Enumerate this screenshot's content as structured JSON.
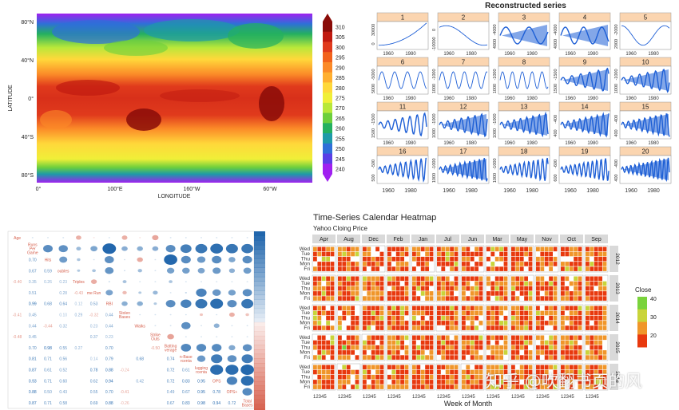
{
  "chart_data": [
    {
      "type": "heatmap",
      "title": "",
      "xlabel": "LONGITUDE",
      "ylabel": "LATITUDE",
      "x_ticks": [
        "0°",
        "100°E",
        "160°W",
        "60°W"
      ],
      "y_ticks": [
        "80°N",
        "40°N",
        "0°",
        "40°S",
        "80°S"
      ],
      "colorbar_ticks": [
        310,
        305,
        300,
        295,
        290,
        285,
        280,
        275,
        270,
        265,
        260,
        255,
        250,
        245,
        240
      ],
      "colorbar_colors": [
        "#8a0c08",
        "#c01a10",
        "#e03a1c",
        "#f2621c",
        "#fb8a28",
        "#ffaf30",
        "#ffd83a",
        "#f0ef38",
        "#b8e83a",
        "#6ccf3c",
        "#24b060",
        "#1e9aa8",
        "#2f6fd8",
        "#5a3ee6",
        "#a020f0"
      ]
    },
    {
      "type": "line",
      "title": "Reconstructed series",
      "panels": [
        {
          "name": "1",
          "y_ticks": [
            "30000",
            "0"
          ]
        },
        {
          "name": "2",
          "y_ticks": [
            "0",
            "-10000"
          ]
        },
        {
          "name": "3",
          "y_ticks": [
            "-4000",
            "4000"
          ]
        },
        {
          "name": "4",
          "y_ticks": [
            "-4000",
            "4000"
          ]
        },
        {
          "name": "5",
          "y_ticks": [
            "-2000",
            "2000"
          ]
        },
        {
          "name": "6",
          "y_ticks": [
            "-5000",
            "5000"
          ]
        },
        {
          "name": "7",
          "y_ticks": [
            "-1000",
            "1000"
          ]
        },
        {
          "name": "8",
          "y_ticks": [
            "-1000",
            "1000"
          ]
        },
        {
          "name": "9",
          "y_ticks": [
            "-1500",
            "1500"
          ]
        },
        {
          "name": "10",
          "y_ticks": [
            "-1000",
            "1000"
          ]
        },
        {
          "name": "11",
          "y_ticks": [
            "-1500",
            "1500"
          ]
        },
        {
          "name": "12",
          "y_ticks": [
            "-1000",
            "1000"
          ]
        },
        {
          "name": "13",
          "y_ticks": [
            "-1000",
            "1000"
          ]
        },
        {
          "name": "14",
          "y_ticks": [
            "-400",
            "400"
          ]
        },
        {
          "name": "15",
          "y_ticks": [
            "-400",
            "400"
          ]
        },
        {
          "name": "16",
          "y_ticks": [
            "-500",
            "500"
          ]
        },
        {
          "name": "17",
          "y_ticks": [
            "-1000",
            "1000"
          ]
        },
        {
          "name": "18",
          "y_ticks": [
            "-1000",
            "1000"
          ]
        },
        {
          "name": "19",
          "y_ticks": [
            "-600",
            "600"
          ]
        },
        {
          "name": "20",
          "y_ticks": [
            "-400",
            "400"
          ]
        }
      ],
      "x_ticks": [
        "1960",
        "1980"
      ]
    },
    {
      "type": "heatmap",
      "title": "",
      "variables": [
        "Age",
        "Runs Per Game",
        "Hits",
        "Doubles",
        "Triples",
        "Home Runs",
        "RBI",
        "Stolen Bases",
        "Walks",
        "Strike Outs",
        "Batting Average",
        "On-Base Percentage",
        "Slugging Percentage",
        "OPS",
        "OPS+",
        "Total Bases"
      ],
      "diag_labels": [
        "Age",
        "Runs\nPer\nGame",
        "Hits",
        "oubles",
        "Triples",
        "me Run",
        "RBI",
        "Stolen\nBases",
        "Walks",
        "Strike\nOuts",
        "Batting\nverage",
        "n-Base\nrcenta",
        "lugging\nrcenta",
        "OPS",
        "OPS+",
        "Total\nBases"
      ],
      "values": [
        [
          1,
          0.05,
          0.05,
          0.05,
          -0.4,
          -0.05,
          0.05,
          -0.41,
          -0.05,
          -0.48,
          0.05,
          0.05,
          0.05,
          0.05,
          0.05,
          0.05
        ],
        [
          0.05,
          1,
          0.7,
          0.67,
          0.35,
          0.51,
          0.99,
          0.45,
          0.44,
          0.45,
          0.7,
          0.81,
          0.87,
          0.93,
          0.88,
          0.87
        ],
        [
          0.05,
          0.7,
          1,
          0.59,
          0.26,
          0.05,
          0.68,
          0.05,
          -0.44,
          0.05,
          0.98,
          0.71,
          0.61,
          0.71,
          0.5,
          0.71
        ],
        [
          0.05,
          0.67,
          0.59,
          1,
          0.23,
          0.28,
          0.64,
          0.1,
          0.32,
          0.05,
          0.55,
          0.56,
          0.52,
          0.6,
          0.43,
          0.58
        ],
        [
          -0.4,
          0.35,
          0.26,
          0.23,
          1,
          -0.43,
          0.12,
          0.29,
          0.05,
          0.05,
          0.27,
          0.05,
          0.05,
          0.05,
          0.05,
          0.05
        ],
        [
          -0.05,
          0.51,
          0.05,
          0.28,
          -0.43,
          1,
          0.53,
          -0.32,
          0.23,
          0.37,
          0.05,
          0.14,
          0.78,
          0.62,
          0.55,
          0.69
        ],
        [
          0.05,
          0.99,
          0.68,
          0.64,
          0.12,
          0.53,
          1,
          0.44,
          0.44,
          0.23,
          0.7,
          0.79,
          0.88,
          0.94,
          0.7,
          0.88
        ],
        [
          -0.41,
          0.45,
          0.05,
          0.1,
          0.29,
          -0.32,
          0.44,
          1,
          0.05,
          0.05,
          0.05,
          0.05,
          -0.24,
          0.05,
          -0.41,
          -0.26
        ],
        [
          -0.05,
          0.44,
          -0.44,
          0.32,
          0.05,
          0.23,
          0.44,
          0.05,
          1,
          0.05,
          0.05,
          0.68,
          0.05,
          0.42,
          0.05,
          0.05
        ],
        [
          -0.48,
          0.45,
          0.05,
          0.05,
          0.05,
          0.37,
          0.23,
          0.05,
          0.05,
          1,
          -0.5,
          0.05,
          0.05,
          0.05,
          0.05,
          0.05
        ],
        [
          0.05,
          0.7,
          0.98,
          0.55,
          0.27,
          0.05,
          0.7,
          0.05,
          0.05,
          -0.5,
          1,
          0.74,
          0.72,
          0.72,
          0.49,
          0.67
        ],
        [
          0.05,
          0.81,
          0.71,
          0.56,
          0.05,
          0.14,
          0.79,
          0.05,
          0.68,
          0.05,
          0.74,
          1,
          0.61,
          0.83,
          0.67,
          0.83
        ],
        [
          0.05,
          0.87,
          0.61,
          0.52,
          0.05,
          0.78,
          0.88,
          -0.24,
          0.05,
          0.05,
          0.72,
          0.61,
          1,
          0.95,
          0.95,
          0.98
        ],
        [
          0.05,
          0.93,
          0.71,
          0.6,
          0.05,
          0.62,
          0.94,
          0.05,
          0.42,
          0.05,
          0.72,
          0.83,
          0.95,
          1,
          0.78,
          0.94
        ],
        [
          0.05,
          0.88,
          0.5,
          0.43,
          0.05,
          0.55,
          0.7,
          -0.41,
          0.05,
          0.05,
          0.49,
          0.67,
          0.95,
          0.78,
          1,
          0.72
        ],
        [
          0.05,
          0.87,
          0.71,
          0.58,
          0.05,
          0.69,
          0.88,
          -0.26,
          0.05,
          0.05,
          0.67,
          0.83,
          0.98,
          0.94,
          0.72,
          1
        ]
      ],
      "colors": {
        "positive": "#2166ac",
        "negative": "#d6604d"
      }
    },
    {
      "type": "heatmap",
      "title": "Time-Series Calendar Heatmap",
      "subtitle": "Yahoo Cloing Price",
      "xlabel": "Week of Month",
      "months": [
        "Apr",
        "Aug",
        "Dec",
        "Feb",
        "Jan",
        "Jul",
        "Jun",
        "Mar",
        "May",
        "Nov",
        "Oct",
        "Sep"
      ],
      "years": [
        "2012",
        "2013",
        "2014",
        "2015",
        "2016"
      ],
      "weekdays": [
        "Wed",
        "Tue",
        "Thu",
        "Mon",
        "Fri"
      ],
      "week_ticks": "12345",
      "legend": {
        "title": "Close",
        "ticks": [
          40,
          30,
          20
        ]
      },
      "colors": {
        "low": "#e8390e",
        "mid": "#f0962a",
        "high": "#7ad33c"
      }
    }
  ],
  "watermark": "知乎 @吹翻书页的风"
}
